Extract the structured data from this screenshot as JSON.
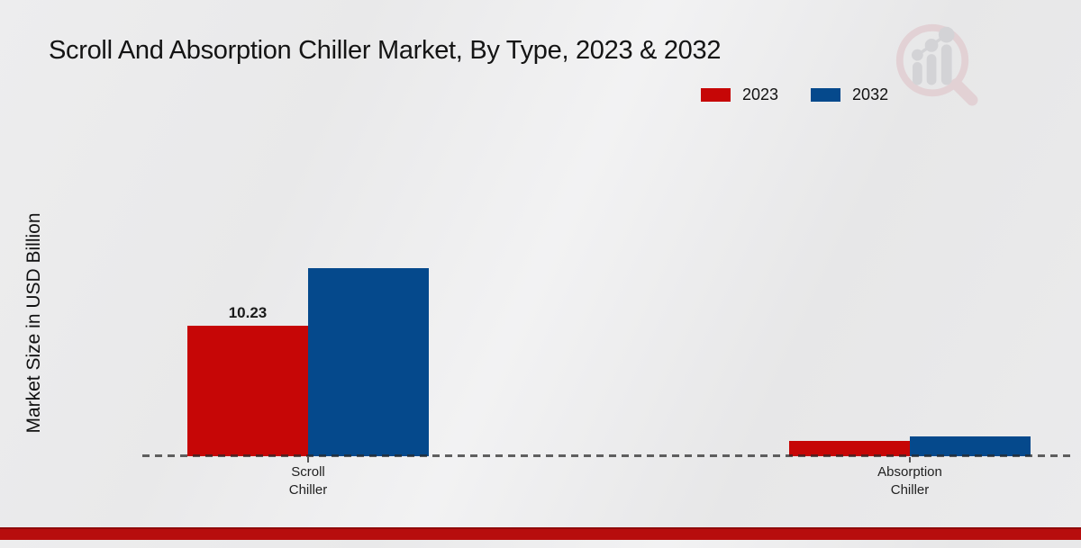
{
  "header": {
    "title": "Scroll And Absorption Chiller Market, By Type, 2023 & 2032"
  },
  "axes": {
    "y_label": "Market Size in USD Billion"
  },
  "legend": {
    "items": [
      {
        "label": "2023",
        "color": "#c60606"
      },
      {
        "label": "2032",
        "color": "#05498c"
      }
    ]
  },
  "chart_data": {
    "type": "bar",
    "title": "Scroll And Absorption Chiller Market, By Type, 2023 & 2032",
    "ylabel": "Market Size in USD Billion",
    "categories": [
      "Scroll Chiller",
      "Absorption Chiller"
    ],
    "series": [
      {
        "name": "2023",
        "color": "#c60606",
        "values": [
          10.23,
          1.2
        ],
        "point_labels": [
          "10.23",
          ""
        ]
      },
      {
        "name": "2032",
        "color": "#05498c",
        "values": [
          14.75,
          1.55
        ],
        "point_labels": [
          "",
          ""
        ]
      }
    ],
    "ylim": [
      0,
      16
    ],
    "grid": false,
    "legend_position": "top-right",
    "x_axis_style": "dashed-baseline"
  },
  "watermark": {
    "icon": "magnifier-bar-chart-logo"
  }
}
